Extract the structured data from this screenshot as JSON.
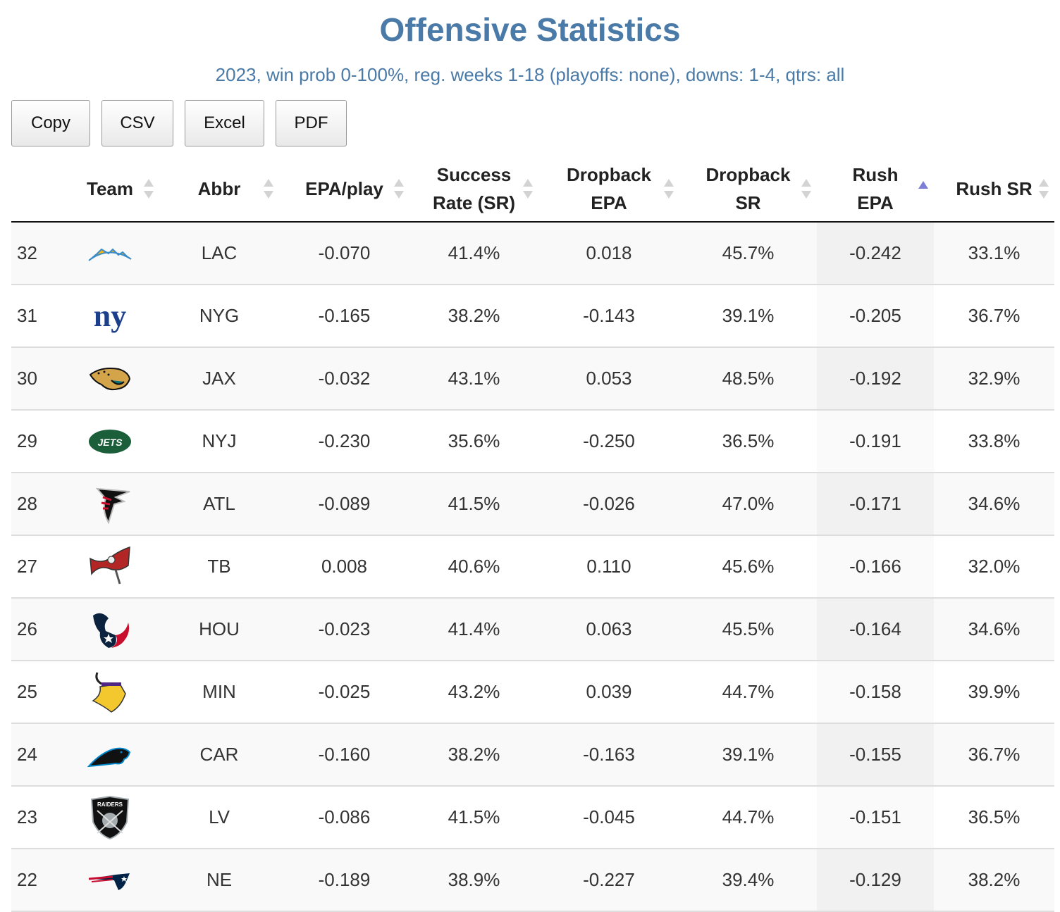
{
  "header": {
    "title": "Offensive Statistics",
    "subtitle": "2023, win prob 0-100%, reg. weeks 1-18 (playoffs: none), downs: 1-4, qtrs: all"
  },
  "toolbar": {
    "copy_label": "Copy",
    "csv_label": "CSV",
    "excel_label": "Excel",
    "pdf_label": "PDF"
  },
  "table": {
    "columns": [
      {
        "key": "rank",
        "label": ""
      },
      {
        "key": "team",
        "label": "Team",
        "sort": "none"
      },
      {
        "key": "abbr",
        "label": "Abbr",
        "sort": "none"
      },
      {
        "key": "epa_play",
        "label": "EPA/play",
        "sort": "none"
      },
      {
        "key": "sr",
        "label": "Success Rate (SR)",
        "sort": "none"
      },
      {
        "key": "db_epa",
        "label": "Dropback EPA",
        "sort": "none"
      },
      {
        "key": "db_sr",
        "label": "Dropback SR",
        "sort": "none"
      },
      {
        "key": "rush_epa",
        "label": "Rush EPA",
        "sort": "ascending"
      },
      {
        "key": "rush_sr",
        "label": "Rush SR",
        "sort": "none"
      }
    ],
    "sort_colors": {
      "active": "#7b7fd6",
      "inactive": "#d3d3d3"
    },
    "rows": [
      {
        "rank": "32",
        "logo": "chargers-logo",
        "abbr": "LAC",
        "epa_play": "-0.070",
        "sr": "41.4%",
        "db_epa": "0.018",
        "db_sr": "45.7%",
        "rush_epa": "-0.242",
        "rush_sr": "33.1%"
      },
      {
        "rank": "31",
        "logo": "giants-logo",
        "abbr": "NYG",
        "epa_play": "-0.165",
        "sr": "38.2%",
        "db_epa": "-0.143",
        "db_sr": "39.1%",
        "rush_epa": "-0.205",
        "rush_sr": "36.7%"
      },
      {
        "rank": "30",
        "logo": "jaguars-logo",
        "abbr": "JAX",
        "epa_play": "-0.032",
        "sr": "43.1%",
        "db_epa": "0.053",
        "db_sr": "48.5%",
        "rush_epa": "-0.192",
        "rush_sr": "32.9%"
      },
      {
        "rank": "29",
        "logo": "jets-logo",
        "abbr": "NYJ",
        "epa_play": "-0.230",
        "sr": "35.6%",
        "db_epa": "-0.250",
        "db_sr": "36.5%",
        "rush_epa": "-0.191",
        "rush_sr": "33.8%"
      },
      {
        "rank": "28",
        "logo": "falcons-logo",
        "abbr": "ATL",
        "epa_play": "-0.089",
        "sr": "41.5%",
        "db_epa": "-0.026",
        "db_sr": "47.0%",
        "rush_epa": "-0.171",
        "rush_sr": "34.6%"
      },
      {
        "rank": "27",
        "logo": "buccaneers-logo",
        "abbr": "TB",
        "epa_play": "0.008",
        "sr": "40.6%",
        "db_epa": "0.110",
        "db_sr": "45.6%",
        "rush_epa": "-0.166",
        "rush_sr": "32.0%"
      },
      {
        "rank": "26",
        "logo": "texans-logo",
        "abbr": "HOU",
        "epa_play": "-0.023",
        "sr": "41.4%",
        "db_epa": "0.063",
        "db_sr": "45.5%",
        "rush_epa": "-0.164",
        "rush_sr": "34.6%"
      },
      {
        "rank": "25",
        "logo": "vikings-logo",
        "abbr": "MIN",
        "epa_play": "-0.025",
        "sr": "43.2%",
        "db_epa": "0.039",
        "db_sr": "44.7%",
        "rush_epa": "-0.158",
        "rush_sr": "39.9%"
      },
      {
        "rank": "24",
        "logo": "panthers-logo",
        "abbr": "CAR",
        "epa_play": "-0.160",
        "sr": "38.2%",
        "db_epa": "-0.163",
        "db_sr": "39.1%",
        "rush_epa": "-0.155",
        "rush_sr": "36.7%"
      },
      {
        "rank": "23",
        "logo": "raiders-logo",
        "abbr": "LV",
        "epa_play": "-0.086",
        "sr": "41.5%",
        "db_epa": "-0.045",
        "db_sr": "44.7%",
        "rush_epa": "-0.151",
        "rush_sr": "36.5%"
      },
      {
        "rank": "22",
        "logo": "patriots-logo",
        "abbr": "NE",
        "epa_play": "-0.189",
        "sr": "38.9%",
        "db_epa": "-0.227",
        "db_sr": "39.4%",
        "rush_epa": "-0.129",
        "rush_sr": "38.2%"
      }
    ]
  },
  "colors": {
    "title": "#4a7aa8",
    "text": "#333333"
  }
}
